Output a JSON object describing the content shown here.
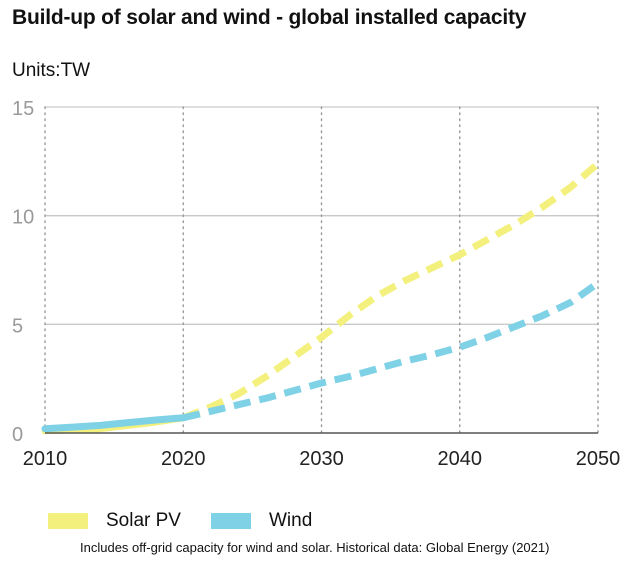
{
  "title": "Build-up of solar and wind - global installed capacity",
  "units_label": "Units:TW",
  "footnote": "Includes off-grid capacity for wind and solar. Historical data: Global Energy (2021)",
  "colors": {
    "solar": "#f3f07e",
    "wind": "#7fd1e6",
    "gridline": "#c9c9c9",
    "vgrid": "#9a9a9a",
    "axis": "#555555",
    "y_tick_text": "#9a9a9a",
    "x_tick_text": "#222222"
  },
  "chart_data": {
    "type": "line",
    "title": "Build-up of solar and wind - global installed capacity",
    "xlabel": "",
    "ylabel": "Units:TW",
    "xlim": [
      2010,
      2050
    ],
    "ylim": [
      0,
      15
    ],
    "x_ticks": [
      2010,
      2020,
      2030,
      2040,
      2050
    ],
    "y_ticks": [
      0,
      5,
      10,
      15
    ],
    "grid": "horizontal solid, vertical dotted",
    "legend_position": "bottom",
    "series": [
      {
        "name": "Solar PV",
        "style": "dashed",
        "x": [
          2010,
          2012,
          2014,
          2016,
          2018,
          2020,
          2022,
          2024,
          2026,
          2028,
          2030,
          2032,
          2034,
          2036,
          2038,
          2040,
          2042,
          2044,
          2046,
          2048,
          2050
        ],
        "values": [
          0.1,
          0.15,
          0.2,
          0.35,
          0.5,
          0.7,
          1.2,
          1.8,
          2.6,
          3.5,
          4.4,
          5.4,
          6.3,
          7.0,
          7.6,
          8.2,
          8.9,
          9.6,
          10.4,
          11.3,
          12.4
        ]
      },
      {
        "name": "Wind",
        "style": "dashed",
        "x": [
          2010,
          2012,
          2014,
          2016,
          2018,
          2020,
          2022,
          2024,
          2026,
          2028,
          2030,
          2032,
          2034,
          2036,
          2038,
          2040,
          2042,
          2044,
          2046,
          2048,
          2050
        ],
        "values": [
          0.2,
          0.27,
          0.35,
          0.48,
          0.6,
          0.7,
          1.0,
          1.3,
          1.6,
          1.95,
          2.3,
          2.6,
          2.95,
          3.3,
          3.6,
          3.95,
          4.4,
          4.9,
          5.4,
          6.0,
          6.9
        ]
      }
    ]
  }
}
